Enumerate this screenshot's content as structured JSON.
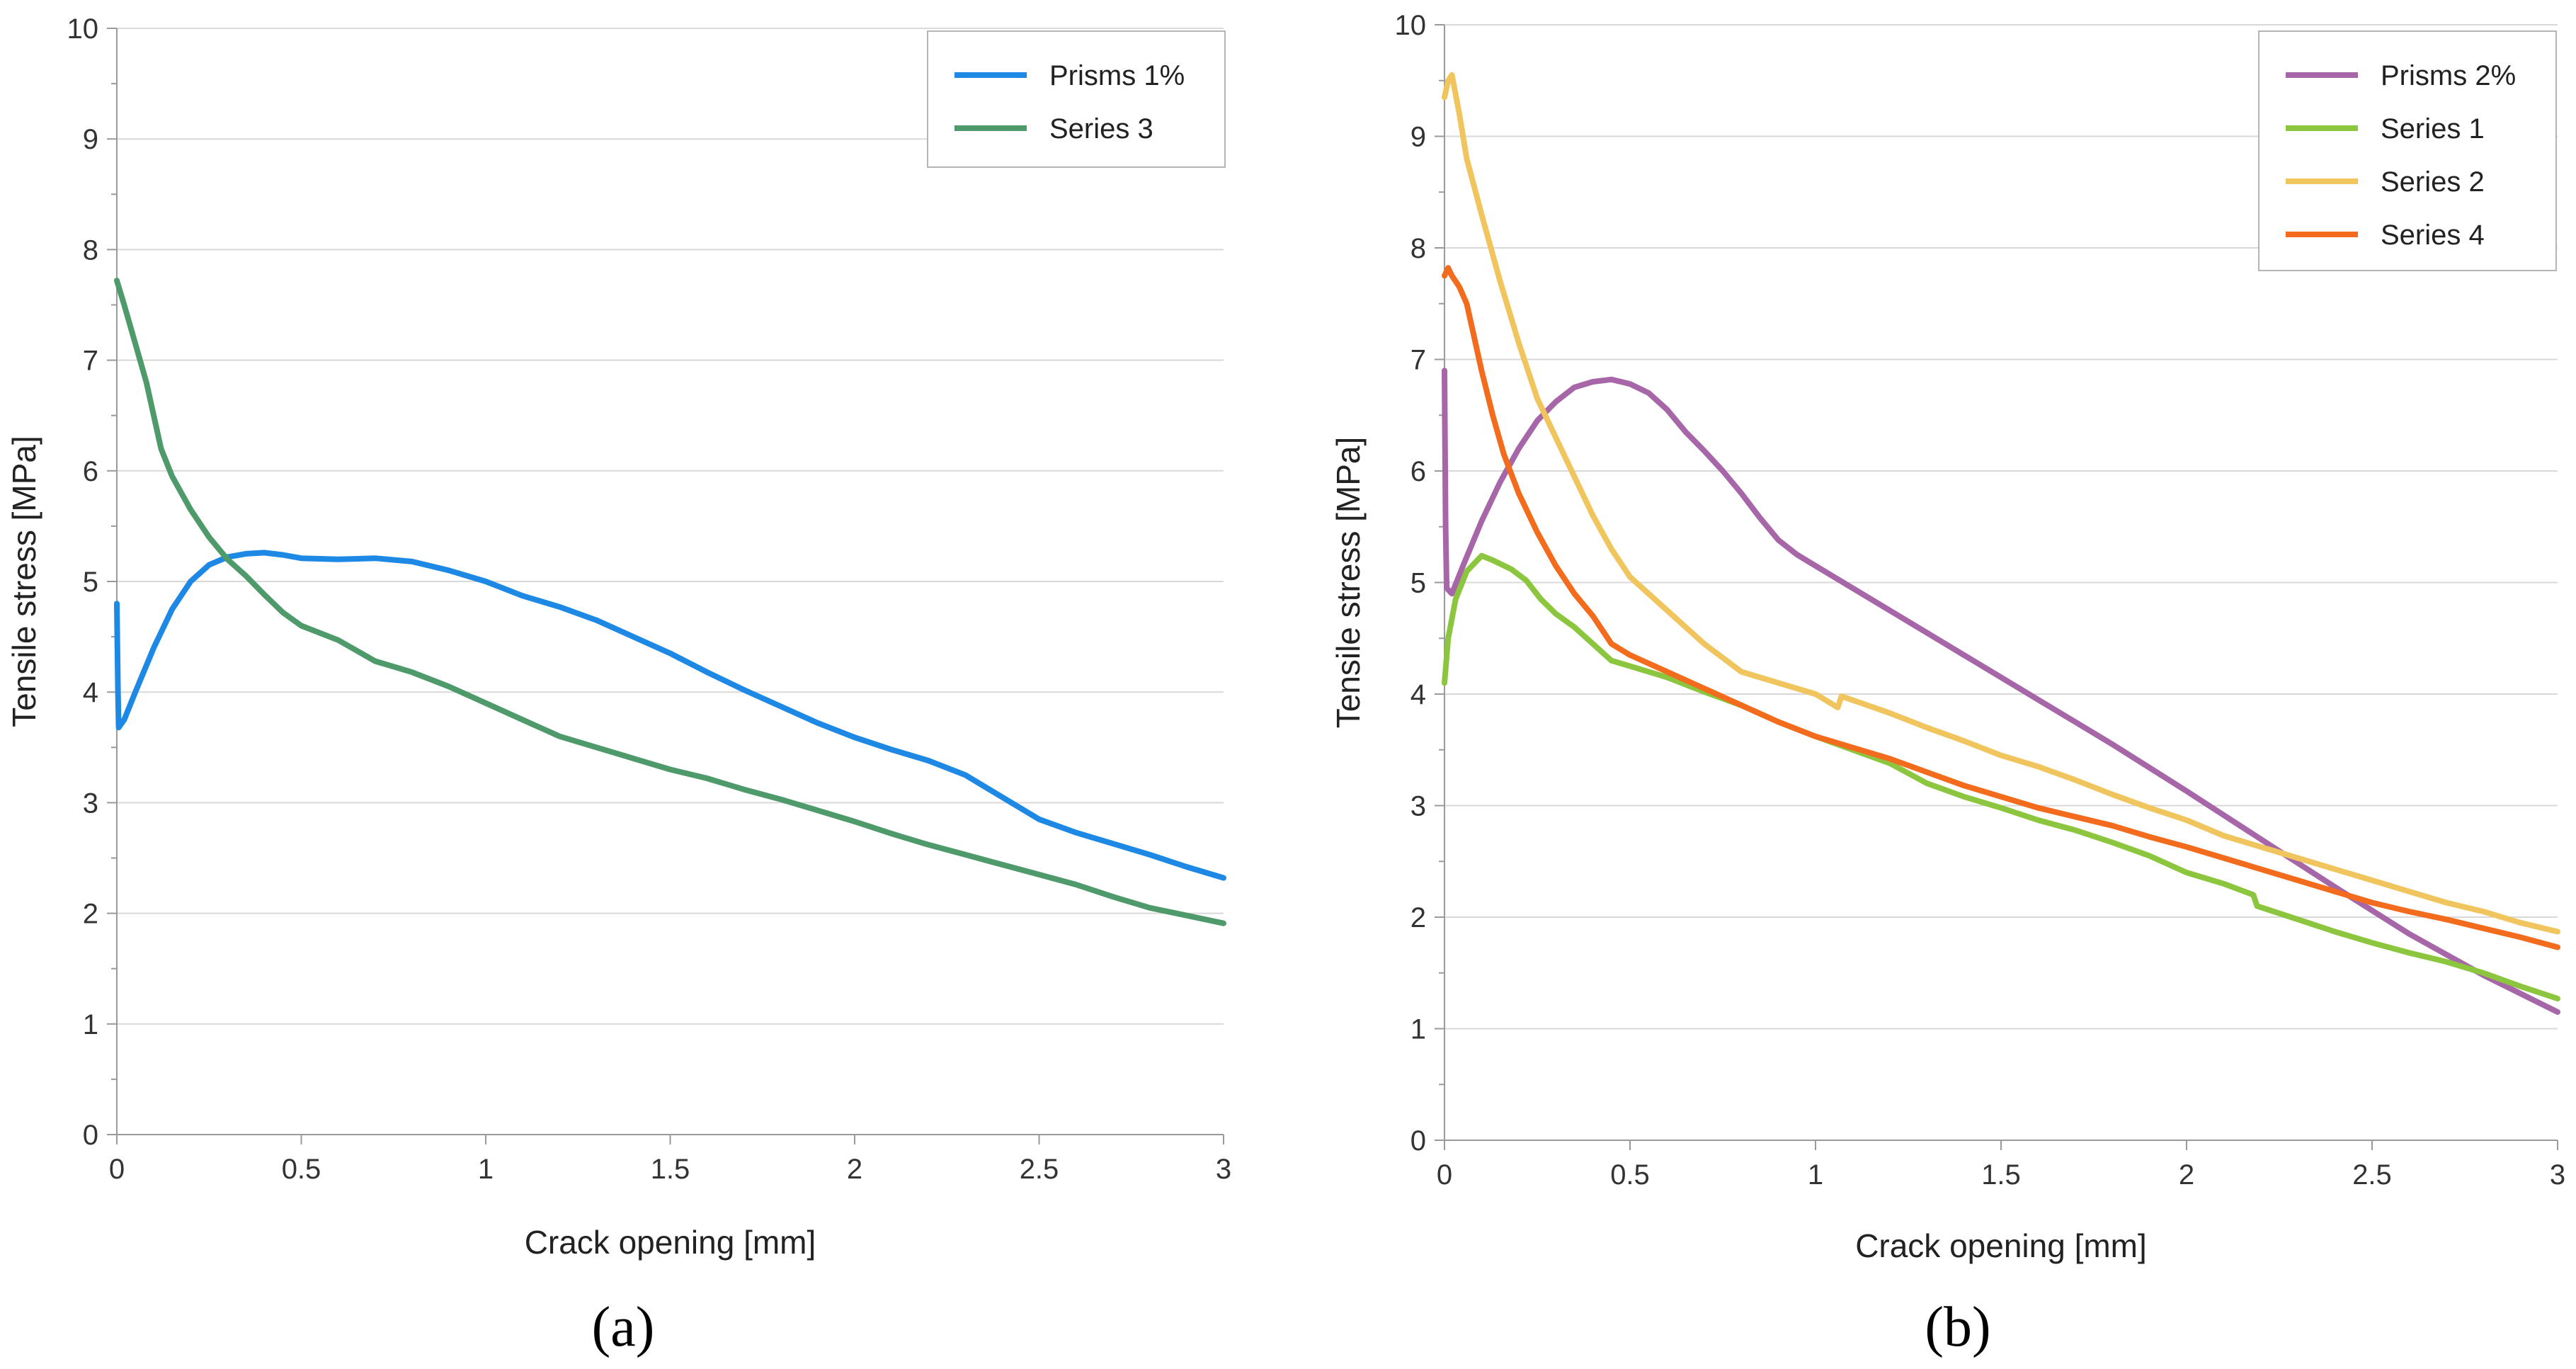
{
  "chart_data": [
    {
      "id": "a",
      "type": "line",
      "caption": "(a)",
      "xlabel": "Crack opening [mm]",
      "ylabel": "Tensile stress [MPa]",
      "xlim": [
        0,
        3
      ],
      "ylim": [
        0,
        10
      ],
      "x_ticks": [
        "0",
        "0.5",
        "1",
        "1.5",
        "2",
        "2.5",
        "3"
      ],
      "y_ticks": [
        "0",
        "1",
        "2",
        "3",
        "4",
        "5",
        "6",
        "7",
        "8",
        "9",
        "10"
      ],
      "grid": "horizontal",
      "legend": "top-right",
      "series": [
        {
          "name": "Prisms 1%",
          "color": "#1e88e5",
          "points": [
            [
              0,
              4.8
            ],
            [
              0.003,
              4.0
            ],
            [
              0.005,
              3.68
            ],
            [
              0.02,
              3.75
            ],
            [
              0.05,
              4.0
            ],
            [
              0.1,
              4.4
            ],
            [
              0.15,
              4.75
            ],
            [
              0.2,
              5.0
            ],
            [
              0.25,
              5.15
            ],
            [
              0.3,
              5.22
            ],
            [
              0.35,
              5.25
            ],
            [
              0.4,
              5.26
            ],
            [
              0.45,
              5.24
            ],
            [
              0.5,
              5.21
            ],
            [
              0.6,
              5.2
            ],
            [
              0.7,
              5.21
            ],
            [
              0.8,
              5.18
            ],
            [
              0.9,
              5.1
            ],
            [
              1.0,
              5.0
            ],
            [
              1.1,
              4.87
            ],
            [
              1.2,
              4.77
            ],
            [
              1.3,
              4.65
            ],
            [
              1.4,
              4.5
            ],
            [
              1.5,
              4.35
            ],
            [
              1.6,
              4.18
            ],
            [
              1.7,
              4.02
            ],
            [
              1.8,
              3.87
            ],
            [
              1.9,
              3.72
            ],
            [
              2.0,
              3.59
            ],
            [
              2.1,
              3.48
            ],
            [
              2.2,
              3.38
            ],
            [
              2.3,
              3.25
            ],
            [
              2.4,
              3.05
            ],
            [
              2.5,
              2.85
            ],
            [
              2.6,
              2.73
            ],
            [
              2.7,
              2.63
            ],
            [
              2.8,
              2.53
            ],
            [
              2.9,
              2.42
            ],
            [
              3.0,
              2.32
            ]
          ]
        },
        {
          "name": "Series 3",
          "color": "#4e9a6a",
          "points": [
            [
              0,
              7.72
            ],
            [
              0.02,
              7.5
            ],
            [
              0.05,
              7.15
            ],
            [
              0.08,
              6.8
            ],
            [
              0.1,
              6.5
            ],
            [
              0.12,
              6.2
            ],
            [
              0.15,
              5.95
            ],
            [
              0.2,
              5.65
            ],
            [
              0.25,
              5.4
            ],
            [
              0.3,
              5.2
            ],
            [
              0.35,
              5.05
            ],
            [
              0.4,
              4.88
            ],
            [
              0.45,
              4.72
            ],
            [
              0.5,
              4.6
            ],
            [
              0.6,
              4.47
            ],
            [
              0.7,
              4.28
            ],
            [
              0.8,
              4.18
            ],
            [
              0.9,
              4.05
            ],
            [
              1.0,
              3.9
            ],
            [
              1.1,
              3.75
            ],
            [
              1.2,
              3.6
            ],
            [
              1.3,
              3.5
            ],
            [
              1.4,
              3.4
            ],
            [
              1.5,
              3.3
            ],
            [
              1.6,
              3.22
            ],
            [
              1.7,
              3.12
            ],
            [
              1.8,
              3.03
            ],
            [
              1.9,
              2.93
            ],
            [
              2.0,
              2.83
            ],
            [
              2.1,
              2.72
            ],
            [
              2.2,
              2.62
            ],
            [
              2.3,
              2.53
            ],
            [
              2.4,
              2.44
            ],
            [
              2.5,
              2.35
            ],
            [
              2.6,
              2.26
            ],
            [
              2.7,
              2.15
            ],
            [
              2.8,
              2.05
            ],
            [
              2.9,
              1.98
            ],
            [
              3.0,
              1.91
            ]
          ]
        }
      ]
    },
    {
      "id": "b",
      "type": "line",
      "caption": "(b)",
      "xlabel": "Crack opening [mm]",
      "ylabel": "Tensile stress [MPa]",
      "xlim": [
        0,
        3
      ],
      "ylim": [
        0,
        10
      ],
      "x_ticks": [
        "0",
        "0.5",
        "1",
        "1.5",
        "2",
        "2.5",
        "3"
      ],
      "y_ticks": [
        "0",
        "1",
        "2",
        "3",
        "4",
        "5",
        "6",
        "7",
        "8",
        "9",
        "10"
      ],
      "grid": "horizontal",
      "legend": "top-right",
      "series": [
        {
          "name": "Prisms 2%",
          "color": "#a766a8",
          "points": [
            [
              0,
              6.9
            ],
            [
              0.003,
              5.5
            ],
            [
              0.006,
              4.95
            ],
            [
              0.02,
              4.9
            ],
            [
              0.05,
              5.15
            ],
            [
              0.1,
              5.55
            ],
            [
              0.15,
              5.9
            ],
            [
              0.2,
              6.2
            ],
            [
              0.25,
              6.45
            ],
            [
              0.3,
              6.62
            ],
            [
              0.35,
              6.75
            ],
            [
              0.4,
              6.8
            ],
            [
              0.45,
              6.82
            ],
            [
              0.5,
              6.78
            ],
            [
              0.55,
              6.7
            ],
            [
              0.6,
              6.55
            ],
            [
              0.65,
              6.35
            ],
            [
              0.7,
              6.18
            ],
            [
              0.75,
              6.0
            ],
            [
              0.8,
              5.8
            ],
            [
              0.85,
              5.58
            ],
            [
              0.9,
              5.38
            ],
            [
              0.95,
              5.25
            ],
            [
              1.0,
              5.15
            ],
            [
              1.2,
              4.75
            ],
            [
              1.4,
              4.35
            ],
            [
              1.6,
              3.95
            ],
            [
              1.8,
              3.55
            ],
            [
              2.0,
              3.13
            ],
            [
              2.2,
              2.7
            ],
            [
              2.4,
              2.27
            ],
            [
              2.6,
              1.85
            ],
            [
              2.8,
              1.48
            ],
            [
              3.0,
              1.15
            ]
          ]
        },
        {
          "name": "Series 1",
          "color": "#8cc63e",
          "points": [
            [
              0,
              4.1
            ],
            [
              0.01,
              4.5
            ],
            [
              0.03,
              4.85
            ],
            [
              0.06,
              5.1
            ],
            [
              0.1,
              5.24
            ],
            [
              0.13,
              5.2
            ],
            [
              0.18,
              5.12
            ],
            [
              0.22,
              5.02
            ],
            [
              0.26,
              4.85
            ],
            [
              0.3,
              4.72
            ],
            [
              0.35,
              4.6
            ],
            [
              0.4,
              4.45
            ],
            [
              0.45,
              4.3
            ],
            [
              0.5,
              4.25
            ],
            [
              0.6,
              4.15
            ],
            [
              0.7,
              4.02
            ],
            [
              0.8,
              3.9
            ],
            [
              0.9,
              3.75
            ],
            [
              1.0,
              3.62
            ],
            [
              1.1,
              3.5
            ],
            [
              1.2,
              3.38
            ],
            [
              1.3,
              3.2
            ],
            [
              1.4,
              3.08
            ],
            [
              1.5,
              2.98
            ],
            [
              1.6,
              2.87
            ],
            [
              1.7,
              2.78
            ],
            [
              1.8,
              2.67
            ],
            [
              1.9,
              2.55
            ],
            [
              2.0,
              2.4
            ],
            [
              2.1,
              2.3
            ],
            [
              2.18,
              2.2
            ],
            [
              2.19,
              2.1
            ],
            [
              2.3,
              1.98
            ],
            [
              2.4,
              1.87
            ],
            [
              2.5,
              1.77
            ],
            [
              2.6,
              1.68
            ],
            [
              2.7,
              1.6
            ],
            [
              2.8,
              1.5
            ],
            [
              2.9,
              1.38
            ],
            [
              3.0,
              1.27
            ]
          ]
        },
        {
          "name": "Series 2",
          "color": "#f1c55e",
          "points": [
            [
              0,
              9.35
            ],
            [
              0.01,
              9.5
            ],
            [
              0.02,
              9.55
            ],
            [
              0.04,
              9.2
            ],
            [
              0.06,
              8.8
            ],
            [
              0.1,
              8.3
            ],
            [
              0.15,
              7.7
            ],
            [
              0.2,
              7.15
            ],
            [
              0.25,
              6.65
            ],
            [
              0.3,
              6.3
            ],
            [
              0.35,
              5.95
            ],
            [
              0.4,
              5.6
            ],
            [
              0.45,
              5.3
            ],
            [
              0.5,
              5.05
            ],
            [
              0.6,
              4.75
            ],
            [
              0.7,
              4.45
            ],
            [
              0.8,
              4.2
            ],
            [
              0.9,
              4.1
            ],
            [
              1.0,
              4.0
            ],
            [
              1.06,
              3.88
            ],
            [
              1.07,
              3.98
            ],
            [
              1.2,
              3.83
            ],
            [
              1.3,
              3.7
            ],
            [
              1.4,
              3.58
            ],
            [
              1.5,
              3.45
            ],
            [
              1.6,
              3.35
            ],
            [
              1.7,
              3.23
            ],
            [
              1.8,
              3.1
            ],
            [
              1.9,
              2.98
            ],
            [
              2.0,
              2.87
            ],
            [
              2.1,
              2.73
            ],
            [
              2.2,
              2.63
            ],
            [
              2.3,
              2.53
            ],
            [
              2.4,
              2.43
            ],
            [
              2.5,
              2.33
            ],
            [
              2.6,
              2.23
            ],
            [
              2.7,
              2.13
            ],
            [
              2.8,
              2.05
            ],
            [
              2.9,
              1.95
            ],
            [
              3.0,
              1.87
            ]
          ]
        },
        {
          "name": "Series 4",
          "color": "#f36b1c",
          "points": [
            [
              0,
              7.75
            ],
            [
              0.01,
              7.82
            ],
            [
              0.02,
              7.75
            ],
            [
              0.04,
              7.65
            ],
            [
              0.06,
              7.5
            ],
            [
              0.08,
              7.2
            ],
            [
              0.1,
              6.9
            ],
            [
              0.13,
              6.5
            ],
            [
              0.16,
              6.15
            ],
            [
              0.2,
              5.8
            ],
            [
              0.25,
              5.45
            ],
            [
              0.3,
              5.15
            ],
            [
              0.35,
              4.9
            ],
            [
              0.4,
              4.7
            ],
            [
              0.45,
              4.45
            ],
            [
              0.5,
              4.35
            ],
            [
              0.6,
              4.2
            ],
            [
              0.7,
              4.05
            ],
            [
              0.8,
              3.9
            ],
            [
              0.9,
              3.75
            ],
            [
              1.0,
              3.62
            ],
            [
              1.1,
              3.52
            ],
            [
              1.2,
              3.42
            ],
            [
              1.3,
              3.3
            ],
            [
              1.4,
              3.18
            ],
            [
              1.5,
              3.08
            ],
            [
              1.6,
              2.98
            ],
            [
              1.7,
              2.9
            ],
            [
              1.8,
              2.82
            ],
            [
              1.9,
              2.72
            ],
            [
              2.0,
              2.63
            ],
            [
              2.1,
              2.53
            ],
            [
              2.2,
              2.43
            ],
            [
              2.3,
              2.33
            ],
            [
              2.4,
              2.23
            ],
            [
              2.5,
              2.13
            ],
            [
              2.6,
              2.05
            ],
            [
              2.7,
              1.98
            ],
            [
              2.8,
              1.9
            ],
            [
              2.9,
              1.82
            ],
            [
              3.0,
              1.73
            ]
          ]
        }
      ]
    }
  ]
}
